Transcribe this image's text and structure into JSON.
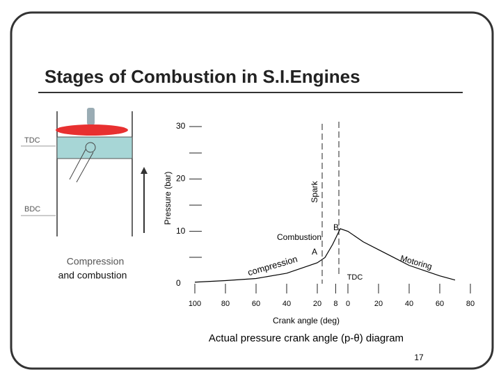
{
  "title": "Stages of Combustion in S.I.Engines",
  "diagram": {
    "tdc": "TDC",
    "bdc": "BDC",
    "stage_1": "Compression",
    "stage_2": "and combustion"
  },
  "chart_data": {
    "type": "line",
    "ylabel": "Pressure (bar)",
    "xlabel": "Crank angle (deg)",
    "xlim": [
      -100,
      80
    ],
    "ylim": [
      0,
      30
    ],
    "xticks": [
      {
        "value": -100,
        "label": "100"
      },
      {
        "value": -80,
        "label": "80"
      },
      {
        "value": -60,
        "label": "60"
      },
      {
        "value": -40,
        "label": "40"
      },
      {
        "value": -20,
        "label": "20"
      },
      {
        "value": -8,
        "label": "8"
      },
      0,
      20,
      40,
      60,
      80
    ],
    "yticks": [
      0,
      10,
      20,
      30
    ],
    "x": [
      -100,
      -80,
      -60,
      -40,
      -20,
      -15,
      -10,
      -5,
      0,
      10,
      20,
      30,
      40,
      50,
      60,
      70
    ],
    "series": [
      {
        "name": "Pressure",
        "color": "#000000",
        "values": [
          0.3,
          0.6,
          1,
          2,
          4,
          5,
          7.5,
          10.5,
          10,
          8,
          6.5,
          5,
          3.5,
          2.5,
          1.5,
          0.7
        ]
      }
    ],
    "annotations": {
      "spark": "Spark",
      "combustion": "Combustion",
      "a": "A",
      "b": "B",
      "motoring": "Motoring",
      "compression": "compression",
      "tdc": "TDC"
    }
  },
  "caption": "Actual pressure crank angle (p-θ) diagram",
  "page_number": "17"
}
